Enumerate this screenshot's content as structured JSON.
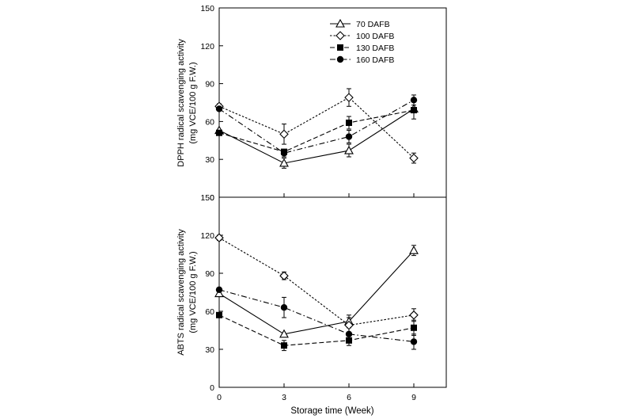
{
  "chart_data": [
    {
      "type": "line",
      "title": "",
      "xlabel": "",
      "ylabel_line1": "DPPH radical scavenging activity",
      "ylabel_line2": "(mg VCE/100 g F.W.)",
      "x": [
        0,
        3,
        6,
        9
      ],
      "xlim": [
        0,
        10.5
      ],
      "ylim": [
        0,
        150
      ],
      "yticks": [
        0,
        30,
        60,
        90,
        120,
        150
      ],
      "ytick_labels": [
        "0",
        "30",
        "60",
        "90",
        "120",
        "150"
      ],
      "legend_position": "top-right",
      "series": [
        {
          "name": "70 DAFB",
          "values": [
            53,
            27,
            37,
            70
          ],
          "errors": [
            0,
            4,
            5,
            0
          ],
          "marker": "triangle-open",
          "dash": "solid"
        },
        {
          "name": "100 DAFB",
          "values": [
            72,
            50,
            79,
            31
          ],
          "errors": [
            2,
            8,
            7,
            4
          ],
          "marker": "diamond-open",
          "dash": "dotted"
        },
        {
          "name": "130 DAFB",
          "values": [
            51,
            36,
            59,
            69
          ],
          "errors": [
            0,
            0,
            5,
            7
          ],
          "marker": "square-filled",
          "dash": "dashed"
        },
        {
          "name": "160 DAFB",
          "values": [
            70,
            35,
            48,
            77
          ],
          "errors": [
            0,
            3,
            5,
            4
          ],
          "marker": "circle-filled",
          "dash": "dashdot"
        }
      ]
    },
    {
      "type": "line",
      "title": "",
      "xlabel": "Storage time (Week)",
      "ylabel_line1": "ABTS radical scavenging activity",
      "ylabel_line2": "(mg VCE/100 g F.W.)",
      "x": [
        0,
        3,
        6,
        9
      ],
      "xlim": [
        0,
        10.5
      ],
      "ylim": [
        0,
        150
      ],
      "xticks": [
        0,
        3,
        6,
        9
      ],
      "xtick_labels": [
        "0",
        "3",
        "6",
        "9"
      ],
      "yticks": [
        0,
        30,
        60,
        90,
        120,
        150
      ],
      "ytick_labels": [
        "0",
        "30",
        "60",
        "90",
        "120",
        "150"
      ],
      "series": [
        {
          "name": "70 DAFB",
          "values": [
            74,
            42,
            52,
            108
          ],
          "errors": [
            0,
            0,
            5,
            4
          ],
          "marker": "triangle-open",
          "dash": "solid"
        },
        {
          "name": "100 DAFB",
          "values": [
            118,
            88,
            49,
            57
          ],
          "errors": [
            2,
            3,
            6,
            5
          ],
          "marker": "diamond-open",
          "dash": "dotted"
        },
        {
          "name": "130 DAFB",
          "values": [
            57,
            33,
            37,
            47
          ],
          "errors": [
            0,
            4,
            4,
            6
          ],
          "marker": "square-filled",
          "dash": "dashed"
        },
        {
          "name": "160 DAFB",
          "values": [
            77,
            63,
            42,
            36
          ],
          "errors": [
            0,
            8,
            0,
            6
          ],
          "marker": "circle-filled",
          "dash": "dashdot"
        }
      ]
    }
  ],
  "colors": {
    "ink": "#000000",
    "paper": "#ffffff"
  }
}
